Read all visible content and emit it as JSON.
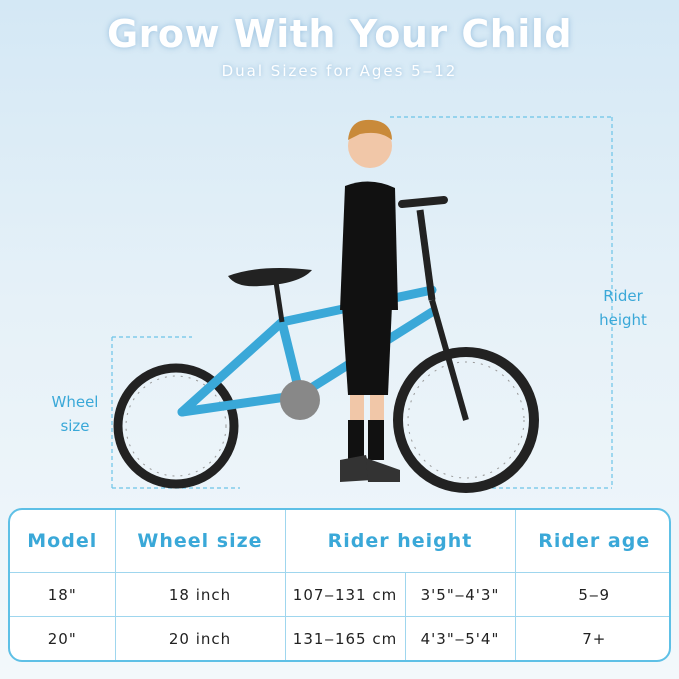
{
  "header": {
    "title": "Grow With Your Child",
    "subtitle": "Dual Sizes for Ages 5‒12"
  },
  "labels": {
    "wheel_size": [
      "Wheel",
      "size"
    ],
    "rider_height": [
      "Rider",
      "height"
    ]
  },
  "table": {
    "header": [
      "Model",
      "Wheel size",
      "Rider height",
      "Rider age"
    ],
    "rows": [
      [
        "18\"",
        "18 inch",
        "107‒131 cm",
        "3'5\"‒4'3\"",
        "5‒9"
      ],
      [
        "20\"",
        "20 inch",
        "131‒165 cm",
        "4'3\"‒5'4\"",
        "7+"
      ]
    ]
  }
}
